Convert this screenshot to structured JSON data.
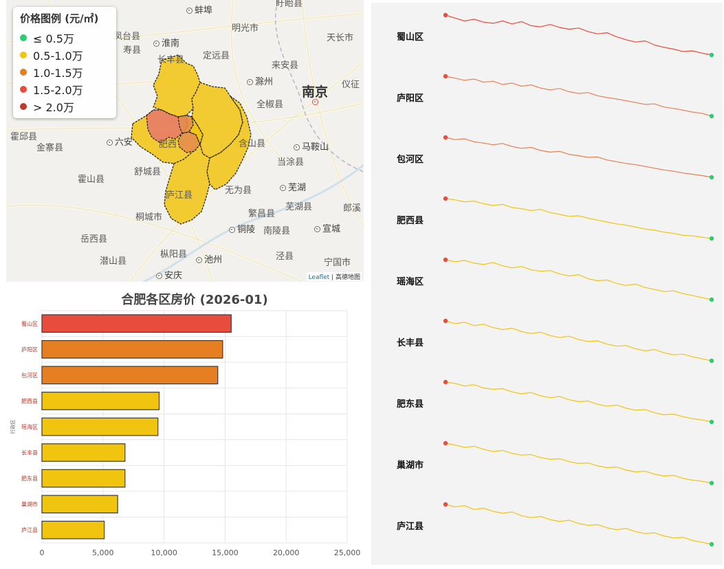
{
  "map": {
    "legend": {
      "title": "价格图例 (元/㎡)",
      "items": [
        {
          "label": "≤ 0.5万",
          "color": "#2ecc71"
        },
        {
          "label": "0.5-1.0万",
          "color": "#f1c40f"
        },
        {
          "label": "1.0-1.5万",
          "color": "#e67e22"
        },
        {
          "label": "1.5-2.0万",
          "color": "#e74c3c"
        },
        {
          "label": "> 2.0万",
          "color": "#c0392b"
        }
      ]
    },
    "places": [
      {
        "name": "蚌埠",
        "type": "city"
      },
      {
        "name": "盱眙县",
        "type": "county"
      },
      {
        "name": "凤台县",
        "type": "county"
      },
      {
        "name": "淮南",
        "type": "city"
      },
      {
        "name": "明光市",
        "type": "county"
      },
      {
        "name": "天长市",
        "type": "county"
      },
      {
        "name": "寿县",
        "type": "county"
      },
      {
        "name": "长丰县",
        "type": "county"
      },
      {
        "name": "定远县",
        "type": "county"
      },
      {
        "name": "来安县",
        "type": "county"
      },
      {
        "name": "滁州",
        "type": "city"
      },
      {
        "name": "仪征",
        "type": "county"
      },
      {
        "name": "南京",
        "type": "capital"
      },
      {
        "name": "全椒县",
        "type": "county"
      },
      {
        "name": "霍邱县",
        "type": "county"
      },
      {
        "name": "金寨县",
        "type": "county"
      },
      {
        "name": "六安",
        "type": "city"
      },
      {
        "name": "含山县",
        "type": "county"
      },
      {
        "name": "马鞍山",
        "type": "city"
      },
      {
        "name": "舒城县",
        "type": "county"
      },
      {
        "name": "霍山县",
        "type": "county"
      },
      {
        "name": "当涂县",
        "type": "county"
      },
      {
        "name": "芜湖",
        "type": "city"
      },
      {
        "name": "无为县",
        "type": "county"
      },
      {
        "name": "庐江县",
        "type": "county"
      },
      {
        "name": "芜湖县",
        "type": "county"
      },
      {
        "name": "郎溪",
        "type": "county"
      },
      {
        "name": "繁昌县",
        "type": "county"
      },
      {
        "name": "桐城市",
        "type": "county"
      },
      {
        "name": "铜陵",
        "type": "city"
      },
      {
        "name": "南陵县",
        "type": "county"
      },
      {
        "name": "宣城",
        "type": "city"
      },
      {
        "name": "岳西县",
        "type": "county"
      },
      {
        "name": "枞阳县",
        "type": "county"
      },
      {
        "name": "潜山县",
        "type": "county"
      },
      {
        "name": "池州",
        "type": "city"
      },
      {
        "name": "泾县",
        "type": "county"
      },
      {
        "name": "宁国市",
        "type": "county"
      },
      {
        "name": "安庆",
        "type": "city"
      },
      {
        "name": "肥西",
        "type": "county"
      }
    ],
    "attribution_leaflet": "Leaflet",
    "attribution_rest": "| 高德地图"
  },
  "chart_data": [
    {
      "type": "bar",
      "orientation": "horizontal",
      "title": "合肥各区房价 (2026-01)",
      "xlabel": "",
      "ylabel": "行政区",
      "categories": [
        "蜀山区",
        "庐阳区",
        "包河区",
        "肥西县",
        "瑶海区",
        "长丰县",
        "肥东县",
        "巢湖市",
        "庐江县"
      ],
      "values": [
        15500,
        14800,
        14400,
        9600,
        9500,
        6800,
        6800,
        6200,
        5100
      ],
      "colors": [
        "#e74c3c",
        "#e67e22",
        "#e67e22",
        "#f1c40f",
        "#f1c40f",
        "#f1c40f",
        "#f1c40f",
        "#f1c40f",
        "#f1c40f"
      ],
      "xlim": [
        0,
        25000
      ],
      "xticks": [
        0,
        5000,
        10000,
        15000,
        20000,
        25000
      ],
      "xtick_labels": [
        "0",
        "5,000",
        "10,000",
        "15,000",
        "20,000",
        "25,000"
      ],
      "grid": true
    },
    {
      "type": "line",
      "description": "small-multiple sparklines of price trend per district; first point marked red, last point marked green",
      "start_marker_color": "#e74c3c",
      "end_marker_color": "#2ecc71",
      "series": [
        {
          "name": "蜀山区",
          "color": "#e74c3c",
          "values": [
            100,
            99.5,
            99,
            99.3,
            98.8,
            98.6,
            99,
            98.5,
            98.9,
            98.2,
            98,
            98.4,
            97.9,
            97.6,
            97.8,
            97.2,
            96.8,
            97,
            96.3,
            95.8,
            95.4,
            95.6,
            94.9,
            94.5,
            94.2,
            93.8,
            93.9,
            93.5,
            93.2
          ]
        },
        {
          "name": "庐阳区",
          "color": "#e8825a",
          "values": [
            100,
            99.6,
            99.1,
            99.4,
            98.7,
            98.9,
            98.2,
            98.5,
            97.8,
            98.1,
            97.4,
            97,
            97.3,
            96.6,
            96.2,
            96.4,
            95.7,
            95.3,
            95,
            94.6,
            94.2,
            93.8,
            93.9,
            93.2,
            92.9,
            92.5,
            92.1,
            91.8,
            91.2
          ]
        },
        {
          "name": "包河区",
          "color": "#e67e50",
          "values": [
            100,
            99.5,
            99.7,
            99,
            98.7,
            98.3,
            98.6,
            97.9,
            97.5,
            97.7,
            97,
            96.6,
            96.8,
            96.1,
            95.8,
            95.4,
            95.5,
            94.8,
            94.4,
            94,
            93.7,
            93.3,
            92.9,
            92.5,
            92.2,
            91.8,
            91.5,
            91.2,
            90.8
          ]
        },
        {
          "name": "肥西县",
          "color": "#f1c40f",
          "values": [
            100,
            99.8,
            99.5,
            99.6,
            99.2,
            98.9,
            99.1,
            98.6,
            98.4,
            98.1,
            98.3,
            97.8,
            97.5,
            97.2,
            97.3,
            96.9,
            96.6,
            96.3,
            96,
            95.8,
            95.5,
            95.2,
            95,
            94.7,
            94.5,
            94.2,
            94.1,
            93.9,
            93.7
          ]
        },
        {
          "name": "瑶海区",
          "color": "#f1c40f",
          "values": [
            100,
            99.7,
            99.9,
            99.5,
            99.3,
            99.6,
            99.1,
            98.8,
            99,
            98.5,
            98.3,
            98.4,
            97.9,
            97.6,
            97.8,
            97.2,
            96.9,
            97,
            96.5,
            96.2,
            96.4,
            95.9,
            95.6,
            95.3,
            95.4,
            95,
            94.7,
            94.4,
            94.1
          ]
        },
        {
          "name": "长丰县",
          "color": "#f1c40f",
          "values": [
            100,
            99.6,
            99.8,
            99.3,
            99.5,
            99,
            98.7,
            98.9,
            98.4,
            98.1,
            98.3,
            97.8,
            97.5,
            97.7,
            97.2,
            96.9,
            97,
            96.5,
            96.2,
            96.3,
            95.8,
            95.5,
            95.7,
            95.2,
            94.9,
            95,
            94.6,
            94.3,
            94
          ]
        },
        {
          "name": "肥东县",
          "color": "#f1c40f",
          "values": [
            100,
            99.8,
            99.4,
            99.6,
            99.1,
            98.9,
            99,
            98.5,
            98.2,
            98.4,
            97.9,
            97.6,
            97.8,
            97.3,
            97,
            97.1,
            96.6,
            96.3,
            96.5,
            96,
            95.7,
            95.8,
            95.3,
            95,
            95.1,
            94.7,
            94.4,
            94.2,
            93.9
          ]
        },
        {
          "name": "巢湖市",
          "color": "#f1c40f",
          "values": [
            100,
            99.7,
            99.3,
            99.5,
            99,
            98.6,
            98.8,
            98.3,
            98,
            98.1,
            97.6,
            97.3,
            97.4,
            96.9,
            96.6,
            96.7,
            96.2,
            95.9,
            96,
            95.5,
            95.2,
            95.3,
            94.8,
            94.5,
            94.6,
            94.1,
            93.8,
            93.6,
            93.3
          ]
        },
        {
          "name": "庐江县",
          "color": "#f1c40f",
          "values": [
            100,
            99.6,
            99.8,
            99.2,
            99.4,
            98.9,
            98.6,
            98.8,
            98.2,
            97.9,
            98.1,
            97.6,
            97.3,
            97.5,
            97,
            96.7,
            96.8,
            96.3,
            96,
            96.2,
            95.7,
            95.4,
            95.5,
            95,
            94.7,
            94.8,
            94.3,
            94,
            93.7
          ]
        }
      ]
    }
  ]
}
